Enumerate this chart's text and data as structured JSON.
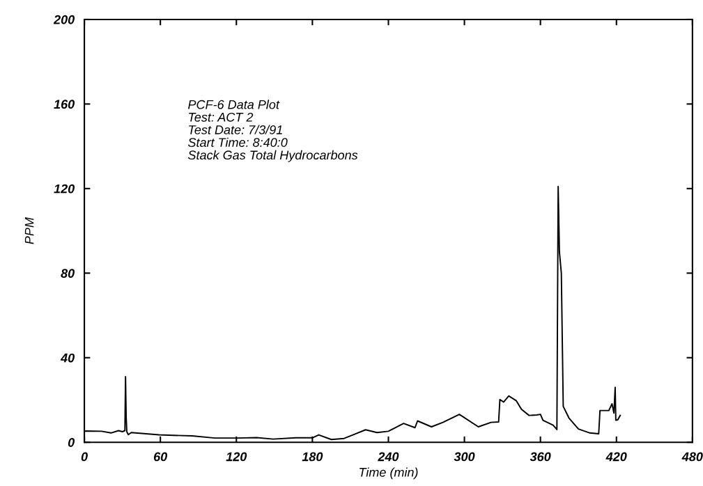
{
  "chart_data": {
    "type": "line",
    "xlabel": "Time (min)",
    "ylabel": "PPM",
    "annotations": [
      "PCF-6 Data Plot",
      "Test: ACT 2",
      "Test Date: 7/3/91",
      "Start Time: 8:40:0",
      "Stack Gas Total Hydrocarbons"
    ],
    "x": [
      0,
      0.9,
      13.6,
      21,
      27,
      30,
      32,
      32.5,
      33,
      33.5,
      34.7,
      37,
      59,
      85,
      103,
      121,
      136,
      149,
      167,
      180,
      185,
      195,
      205,
      222,
      231,
      240,
      252,
      261,
      263,
      274,
      283,
      296,
      311,
      321,
      327,
      328,
      331,
      335,
      341,
      345,
      351,
      357,
      360,
      362,
      370,
      373,
      374,
      375,
      376.5,
      378,
      382.5,
      390,
      399,
      406,
      407,
      414,
      416.5,
      418,
      419,
      419.5,
      421,
      423
    ],
    "series": [
      {
        "color": "#000000",
        "values": [
          5.2,
          5.3,
          5.2,
          4.4,
          5.5,
          5.0,
          5.5,
          31,
          12,
          5,
          3.6,
          4.6,
          3.5,
          3.0,
          2.0,
          2.0,
          2.2,
          1.5,
          2.1,
          2.1,
          3.5,
          1.3,
          1.8,
          5.9,
          4.6,
          5.2,
          8.9,
          6.9,
          10.1,
          7.3,
          9.4,
          13.2,
          7.3,
          9.4,
          9.6,
          20.2,
          19.0,
          21.9,
          19.6,
          15.6,
          12.7,
          12.9,
          13.2,
          10.4,
          8.1,
          6.0,
          121,
          90,
          80,
          17,
          11.5,
          6.3,
          4.4,
          4.0,
          15,
          15,
          18.2,
          13.8,
          26,
          10.4,
          10.6,
          12.7
        ]
      }
    ],
    "xlim": [
      0,
      480
    ],
    "xticks": [
      0,
      60,
      120,
      180,
      240,
      300,
      360,
      420,
      480
    ],
    "ylim": [
      0,
      200
    ],
    "yticks": [
      0,
      40,
      80,
      120,
      160,
      200
    ],
    "grid": false,
    "legend": false,
    "marker": "none",
    "line_style": "solid"
  }
}
